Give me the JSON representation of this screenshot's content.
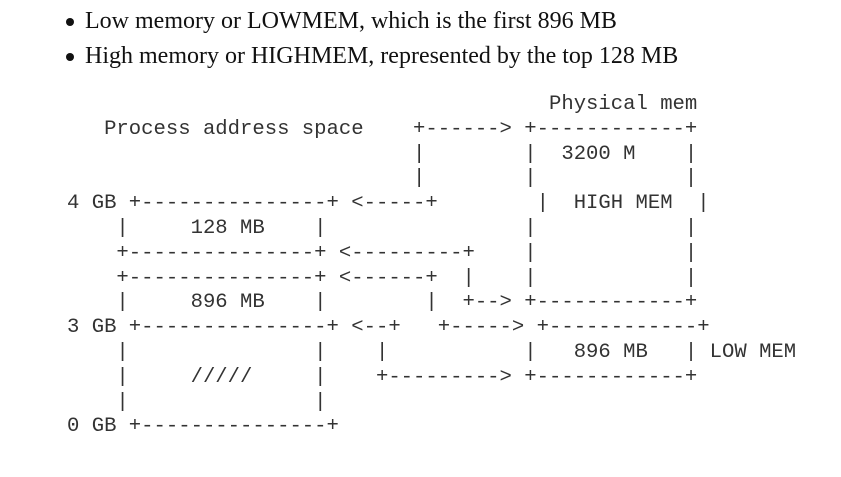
{
  "bullets": [
    "Low memory or LOWMEM, which is the first 896 MB",
    "High memory or HIGHMEM, represented by the top 128 MB"
  ],
  "diagram": {
    "lines": [
      "                                       Physical mem",
      "   Process address space    +------> +------------+",
      "                            |        |  3200 M    |",
      "                            |        |            |",
      "4 GB +---------------+ <-----+        |  HIGH MEM  |",
      "    |     128 MB    |                |            |",
      "    +---------------+ <---------+    |            |",
      "    +---------------+ <------+  |    |            |",
      "    |     896 MB    |        |  +--> +------------+",
      "3 GB +---------------+ <--+   +-----> +------------+",
      "    |               |    |           |   896 MB   | LOW MEM",
      "    |     /////     |    +---------> +------------+",
      "    |               |",
      "0 GB +---------------+"
    ]
  }
}
